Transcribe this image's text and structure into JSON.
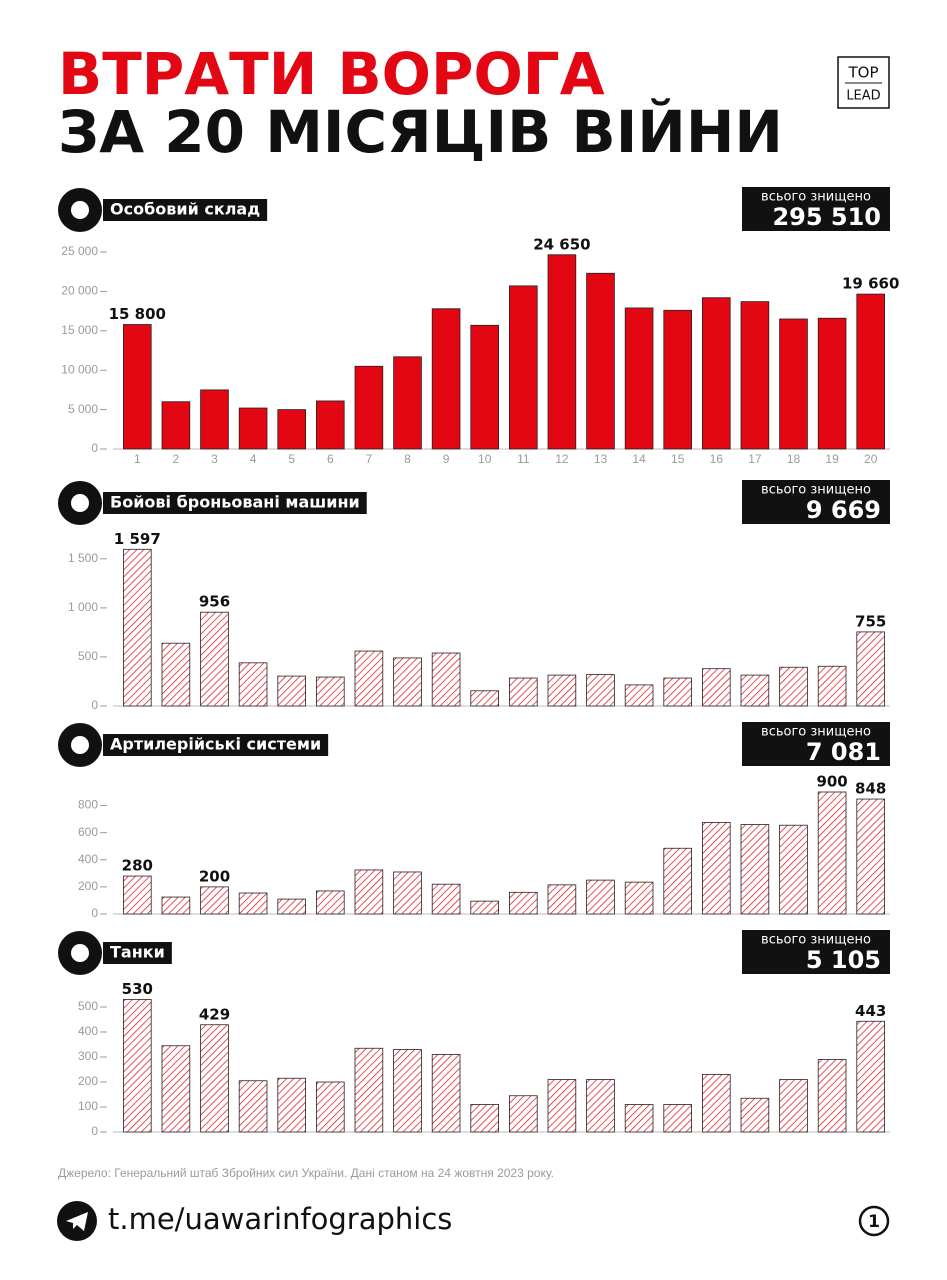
{
  "header": {
    "title_line1": "ВТРАТИ ВОРОГА",
    "title_line2": "ЗА 20 МІСЯЦІВ ВІЙНИ",
    "logo_top": "TOP",
    "logo_bottom": "LEAD"
  },
  "chart_data": [
    {
      "type": "bar",
      "title": "Особовий склад",
      "total_caption": "всього знищено",
      "total": "295 510",
      "pattern": "solid",
      "color": "#e30613",
      "categories": [
        "1",
        "2",
        "3",
        "4",
        "5",
        "6",
        "7",
        "8",
        "9",
        "10",
        "11",
        "12",
        "13",
        "14",
        "15",
        "16",
        "17",
        "18",
        "19",
        "20"
      ],
      "values": [
        15800,
        6000,
        7500,
        5200,
        5000,
        6100,
        10500,
        11700,
        17800,
        15700,
        20700,
        24650,
        22300,
        17900,
        17600,
        19200,
        18700,
        16500,
        16600,
        19660
      ],
      "value_labels": [
        "15 800",
        null,
        null,
        null,
        null,
        null,
        null,
        null,
        null,
        null,
        null,
        "24 650",
        null,
        null,
        null,
        null,
        null,
        null,
        null,
        "19 660"
      ],
      "ylim": [
        0,
        25000
      ],
      "yticks": [
        0,
        {
          "value": 5000,
          "label": "5 000"
        },
        {
          "value": 10000,
          "label": "10 000"
        },
        {
          "value": 15000,
          "label": "15 000"
        },
        {
          "value": 20000,
          "label": "20 000"
        },
        {
          "value": 25000,
          "label": "25 000"
        }
      ]
    },
    {
      "type": "bar",
      "title": "Бойові броньовані машини",
      "total_caption": "всього знищено",
      "total": "9 669",
      "pattern": "hatched",
      "color": "#e30613",
      "values": [
        1597,
        640,
        956,
        440,
        305,
        295,
        560,
        490,
        540,
        155,
        285,
        315,
        320,
        215,
        285,
        380,
        315,
        395,
        405,
        755
      ],
      "value_labels": [
        "1 597",
        null,
        null,
        null,
        null,
        null,
        null,
        null,
        null,
        null,
        null,
        null,
        null,
        null,
        null,
        null,
        null,
        null,
        null,
        null
      ],
      "ylim": [
        0,
        1600
      ],
      "yticks": [
        0,
        500,
        {
          "value": 1000,
          "label": "1 000"
        },
        {
          "value": 1500,
          "label": "1 500"
        }
      ]
    },
    {
      "type": "bar",
      "title": "Артилерійські системи",
      "total_caption": "всього знищено",
      "total": "7 081",
      "pattern": "hatched",
      "color": "#e30613",
      "values": [
        280,
        125,
        200,
        155,
        110,
        170,
        325,
        310,
        220,
        95,
        160,
        215,
        250,
        235,
        485,
        675,
        660,
        655,
        900,
        848
      ],
      "ylim": [
        0,
        900
      ],
      "yticks": [
        0,
        200,
        400,
        600,
        800
      ]
    },
    {
      "type": "bar",
      "title": "Танки",
      "total_caption": "всього знищено",
      "total": "5 105",
      "pattern": "hatched",
      "color": "#e30613",
      "values": [
        530,
        345,
        429,
        205,
        215,
        200,
        335,
        330,
        310,
        110,
        145,
        210,
        210,
        110,
        110,
        230,
        135,
        210,
        290,
        443
      ],
      "ylim": [
        0,
        530
      ],
      "yticks": [
        0,
        100,
        200,
        300,
        400,
        500
      ]
    }
  ],
  "footer": {
    "source": "Джерело: Генеральний штаб Збройних сил України. Дані станом на 24 жовтня 2023 року.",
    "url": "t.me/uawarinfographics",
    "page": "1"
  }
}
